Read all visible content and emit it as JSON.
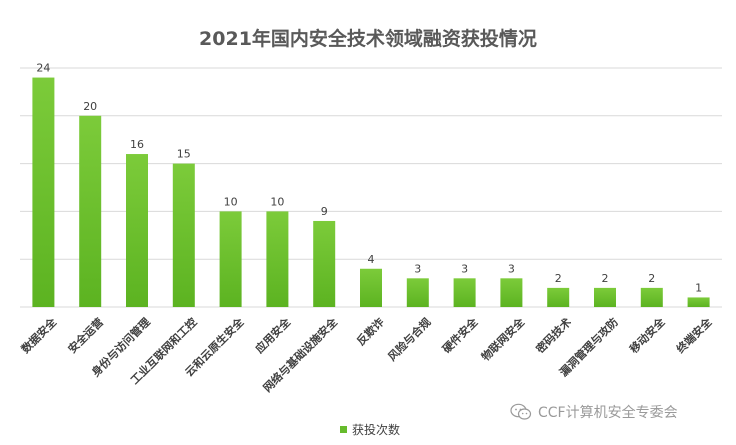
{
  "colors": {
    "bar_top": "#7ccb3a",
    "bar_bottom": "#5cb321",
    "grid": "#d9d9d9",
    "label": "#404040",
    "title": "#595959"
  },
  "watermark": {
    "text": "CCF计算机安全专委会",
    "icon": "wechat-icon"
  },
  "chart_data": {
    "type": "bar",
    "title": "2021年国内安全技术领域融资获投情况",
    "xlabel": "",
    "ylabel": "",
    "ylim": [
      0,
      25
    ],
    "y_ticks": [
      0,
      5,
      10,
      15,
      20,
      25
    ],
    "grid": true,
    "y_tick_labels_visible": false,
    "legend_position": "bottom",
    "categories": [
      "数据安全",
      "安全运营",
      "身份与访问管理",
      "工业互联网和工控",
      "云和云原生安全",
      "应用安全",
      "网络与基础设施安全",
      "反欺诈",
      "风险与合规",
      "硬件安全",
      "物联网安全",
      "密码技术",
      "漏洞管理与攻防",
      "移动安全",
      "终端安全"
    ],
    "series": [
      {
        "name": "获投次数",
        "values": [
          24,
          20,
          16,
          15,
          10,
          10,
          9,
          4,
          3,
          3,
          3,
          2,
          2,
          2,
          1
        ]
      }
    ]
  }
}
